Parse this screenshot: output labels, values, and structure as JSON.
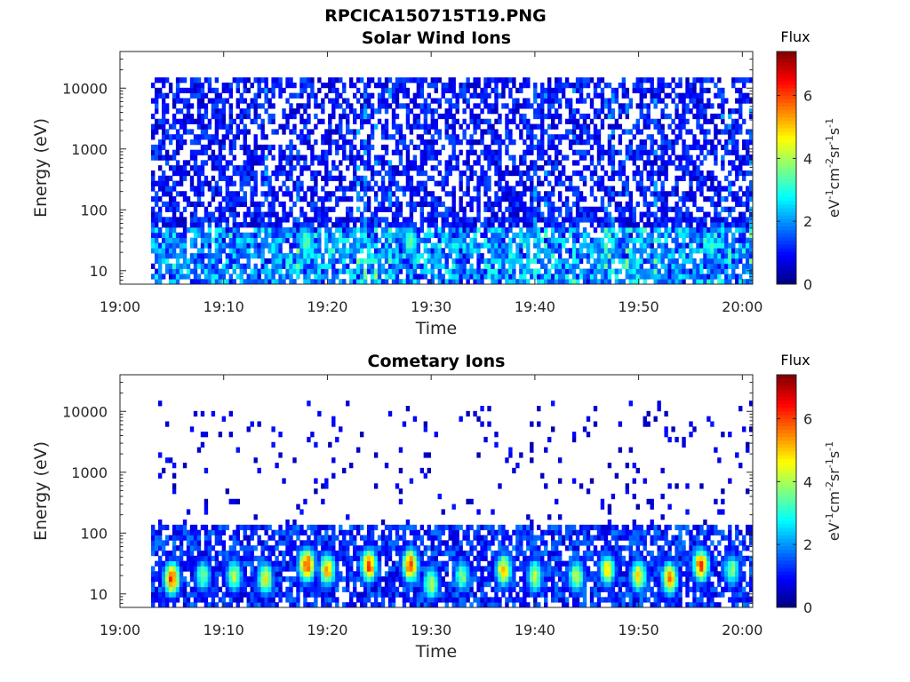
{
  "figure_title": "RPCICA150715T19.PNG",
  "chart_data": [
    {
      "type": "heatmap",
      "title": "Solar Wind Ions",
      "xlabel": "Time",
      "ylabel": "Energy (eV)",
      "y_scale": "log",
      "ylim": [
        6,
        40000
      ],
      "xlim": [
        "19:00",
        "20:01"
      ],
      "x_ticks": [
        "19:00",
        "19:10",
        "19:20",
        "19:30",
        "19:40",
        "19:50",
        "20:00"
      ],
      "y_ticks": [
        "10",
        "100",
        "1000",
        "10000"
      ],
      "colorbar": {
        "label": "Flux",
        "axis_label": "eV-1cm-2sr-1s-1",
        "range": [
          0,
          7.4
        ],
        "ticks": [
          "0",
          "2",
          "4",
          "6"
        ]
      },
      "data_start": "19:03",
      "data_end": "20:01",
      "pattern": "broadband speckle 6 eV - 15 keV, enhanced 10-40 eV near 19:18, 19:28, 19:57",
      "hotspots": [
        {
          "time": "19:18",
          "energy_eV": 30,
          "level": 3.8
        },
        {
          "time": "19:28",
          "energy_eV": 30,
          "level": 3.8
        },
        {
          "time": "19:57",
          "energy_eV": 25,
          "level": 3.2
        }
      ]
    },
    {
      "type": "heatmap",
      "title": "Cometary Ions",
      "xlabel": "Time",
      "ylabel": "Energy (eV)",
      "y_scale": "log",
      "ylim": [
        6,
        40000
      ],
      "xlim": [
        "19:00",
        "20:01"
      ],
      "x_ticks": [
        "19:00",
        "19:10",
        "19:20",
        "19:30",
        "19:40",
        "19:50",
        "20:00"
      ],
      "y_ticks": [
        "10",
        "100",
        "1000",
        "10000"
      ],
      "colorbar": {
        "label": "Flux",
        "axis_label": "eV-1cm-2sr-1s-1",
        "range": [
          0,
          7.4
        ],
        "ticks": [
          "0",
          "2",
          "4",
          "6"
        ]
      },
      "data_start": "19:03",
      "data_end": "20:01",
      "pattern": "periodic bursts 10-40 eV, sparse dots up to 10 keV",
      "hotspots": [
        {
          "time": "19:05",
          "energy_eV": 18,
          "level": 6.5
        },
        {
          "time": "19:08",
          "energy_eV": 20,
          "level": 4.0
        },
        {
          "time": "19:11",
          "energy_eV": 20,
          "level": 4.5
        },
        {
          "time": "19:14",
          "energy_eV": 18,
          "level": 5.0
        },
        {
          "time": "19:18",
          "energy_eV": 30,
          "level": 6.8
        },
        {
          "time": "19:20",
          "energy_eV": 25,
          "level": 5.5
        },
        {
          "time": "19:24",
          "energy_eV": 30,
          "level": 6.2
        },
        {
          "time": "19:28",
          "energy_eV": 30,
          "level": 6.5
        },
        {
          "time": "19:30",
          "energy_eV": 15,
          "level": 4.5
        },
        {
          "time": "19:33",
          "energy_eV": 20,
          "level": 4.0
        },
        {
          "time": "19:37",
          "energy_eV": 25,
          "level": 5.5
        },
        {
          "time": "19:40",
          "energy_eV": 20,
          "level": 4.5
        },
        {
          "time": "19:44",
          "energy_eV": 20,
          "level": 4.5
        },
        {
          "time": "19:47",
          "energy_eV": 25,
          "level": 5.0
        },
        {
          "time": "19:50",
          "energy_eV": 20,
          "level": 5.0
        },
        {
          "time": "19:53",
          "energy_eV": 18,
          "level": 5.8
        },
        {
          "time": "19:56",
          "energy_eV": 30,
          "level": 6.2
        },
        {
          "time": "19:59",
          "energy_eV": 25,
          "level": 4.0
        }
      ]
    }
  ]
}
